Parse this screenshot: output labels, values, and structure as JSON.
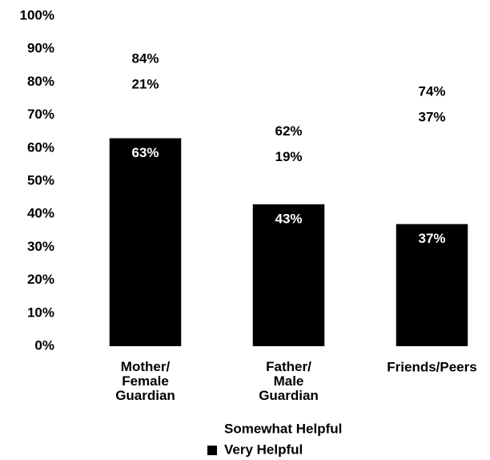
{
  "chart_data": {
    "type": "stacked_bar",
    "categories": [
      "Mother/\nFemale\nGuardian",
      "Father/\nMale\nGuardian",
      "Friends/Peers"
    ],
    "series": [
      {
        "name": "Very Helpful",
        "color": "#000000",
        "values": [
          63,
          43,
          37
        ],
        "value_labels": [
          "63%",
          "43%",
          "37%"
        ]
      },
      {
        "name": "Somewhat Helpful",
        "color": "#ffffff",
        "values": [
          21,
          19,
          37
        ],
        "value_labels": [
          "21%",
          "19%",
          "37%"
        ]
      }
    ],
    "totals": [
      84,
      62,
      74
    ],
    "total_labels": [
      "84%",
      "62%",
      "74%"
    ],
    "ylim": [
      0,
      100
    ],
    "yticks": [
      {
        "value": 0,
        "label": "0%"
      },
      {
        "value": 10,
        "label": "10%"
      },
      {
        "value": 20,
        "label": "20%"
      },
      {
        "value": 30,
        "label": "30%"
      },
      {
        "value": 40,
        "label": "40%"
      },
      {
        "value": 50,
        "label": "50%"
      },
      {
        "value": 60,
        "label": "60%"
      },
      {
        "value": 70,
        "label": "70%"
      },
      {
        "value": 80,
        "label": "80%"
      },
      {
        "value": 90,
        "label": "90%"
      },
      {
        "value": 100,
        "label": "100%"
      }
    ],
    "grid": false
  }
}
